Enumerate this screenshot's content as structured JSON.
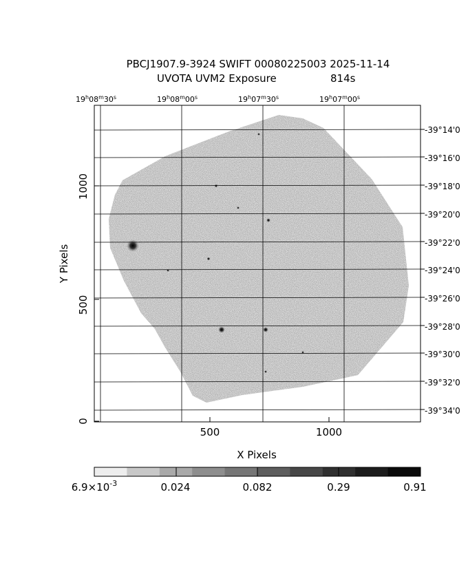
{
  "header": {
    "title_line1": "PBCJ1907.9-3924 SWIFT 00080225003 2025-11-14",
    "title_line2": "UVOTA UVM2 Exposure",
    "exposure": "814s"
  },
  "top_axis": {
    "ticks": [
      {
        "h": "19",
        "m": "08",
        "s": "30"
      },
      {
        "h": "19",
        "m": "08",
        "s": "00"
      },
      {
        "h": "19",
        "m": "07",
        "s": "30"
      },
      {
        "h": "19",
        "m": "07",
        "s": "00"
      }
    ]
  },
  "right_axis": {
    "ticks": [
      "-39°14'0",
      "-39°16'0",
      "-39°18'0",
      "-39°20'0",
      "-39°22'0",
      "-39°24'0",
      "-39°26'0",
      "-39°28'0",
      "-39°30'0",
      "-39°32'0",
      "-39°34'0"
    ]
  },
  "x_axis": {
    "label": "X Pixels",
    "ticks": [
      "500",
      "1000"
    ]
  },
  "y_axis": {
    "label": "Y Pixels",
    "ticks": [
      "0",
      "500",
      "1000"
    ]
  },
  "colorbar": {
    "labels": [
      {
        "base": "6.9×10",
        "exp": "-3"
      },
      {
        "base": "0.024",
        "exp": ""
      },
      {
        "base": "0.082",
        "exp": ""
      },
      {
        "base": "0.29",
        "exp": ""
      },
      {
        "base": "0.91",
        "exp": ""
      }
    ],
    "colors": [
      "#eeeeee",
      "#c8c8c8",
      "#a9a9a9",
      "#8e8e8e",
      "#767676",
      "#5e5e5e",
      "#474747",
      "#303030",
      "#1c1c1c",
      "#0a0a0a"
    ]
  },
  "image": {
    "background": "#b0b0b0",
    "sources": [
      "bright-star",
      "star",
      "star",
      "star",
      "star",
      "star",
      "star",
      "star",
      "star",
      "star",
      "star"
    ]
  }
}
